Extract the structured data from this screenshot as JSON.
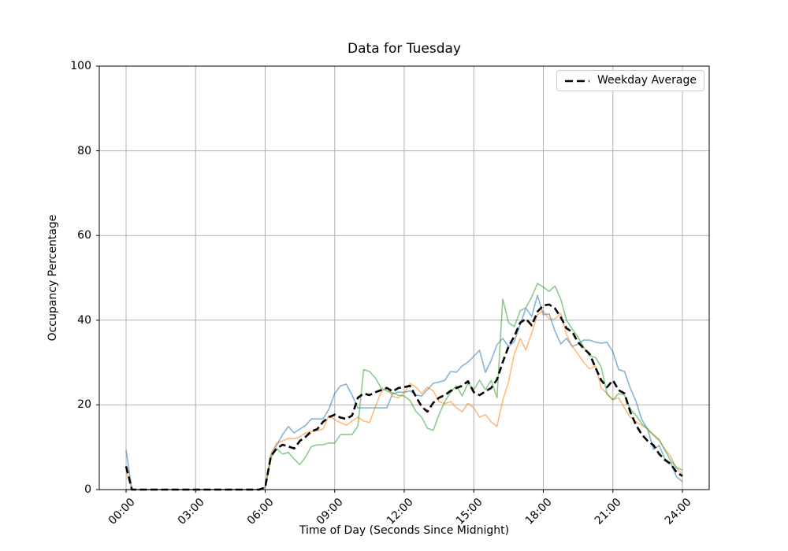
{
  "chart_data": {
    "type": "line",
    "title": "Data for Tuesday",
    "xlabel": "Time of Day (Seconds Since Midnight)",
    "ylabel": "Occupancy Percentage",
    "ylim": [
      0,
      100
    ],
    "y_ticks": [
      0,
      20,
      40,
      60,
      80,
      100
    ],
    "x_tick_hours": [
      0,
      3,
      6,
      9,
      12,
      15,
      18,
      21,
      24
    ],
    "x_tick_labels": [
      "00:00",
      "03:00",
      "06:00",
      "09:00",
      "12:00",
      "15:00",
      "18:00",
      "21:00",
      "24:00"
    ],
    "x_start_hour": 0,
    "x_step_hours": 0.25,
    "grid": true,
    "grid_color": "#b0b0b0",
    "axis_color": "#000000",
    "background": "#ffffff",
    "legend": {
      "label": "Weekday Average",
      "position": "upper right"
    },
    "series": [
      {
        "id": "tuesday-observation-1",
        "color": "#1f77b4",
        "opacity": 0.55,
        "width": 1.6,
        "dash": null,
        "values": [
          9.3,
          0,
          0,
          0,
          0,
          0,
          0,
          0,
          0,
          0,
          0,
          0,
          0,
          0,
          0,
          0,
          0,
          0,
          0,
          0,
          0,
          0,
          0,
          0,
          0.5,
          8.0,
          10.5,
          13.0,
          14.9,
          13.4,
          14.3,
          15.2,
          16.7,
          16.7,
          16.7,
          19.0,
          22.7,
          24.5,
          24.9,
          22.3,
          19.3,
          19.3,
          19.3,
          19.3,
          19.3,
          19.3,
          22.7,
          23.0,
          23.0,
          23.3,
          22.3,
          22.1,
          23.6,
          25.1,
          25.4,
          25.8,
          27.9,
          27.7,
          29.2,
          30.1,
          31.5,
          32.9,
          27.7,
          30.5,
          34.2,
          35.7,
          33.8,
          35.0,
          39.0,
          42.8,
          40.9,
          45.9,
          41.3,
          41.5,
          37.5,
          34.4,
          35.7,
          33.8,
          34.4,
          35.3,
          35.3,
          34.8,
          34.6,
          34.8,
          32.5,
          28.3,
          27.9,
          24.0,
          20.8,
          16.5,
          14.3,
          9.5,
          10.4,
          7.2,
          6.3,
          3.0,
          1.9
        ]
      },
      {
        "id": "tuesday-observation-2",
        "color": "#ff7f0e",
        "opacity": 0.55,
        "width": 1.6,
        "dash": null,
        "values": [
          4.6,
          0,
          0,
          0,
          0,
          0,
          0,
          0,
          0,
          0,
          0,
          0,
          0,
          0,
          0,
          0,
          0,
          0,
          0,
          0,
          0,
          0,
          0,
          0,
          0.5,
          8.5,
          11.0,
          11.5,
          12.1,
          12.0,
          12.5,
          13.4,
          13.7,
          13.9,
          14.3,
          17.5,
          16.5,
          15.8,
          15.2,
          16.2,
          17.1,
          16.2,
          15.8,
          19.5,
          23.0,
          24.2,
          22.0,
          21.7,
          22.8,
          25.1,
          24.2,
          22.7,
          24.2,
          23.3,
          20.8,
          20.3,
          20.8,
          19.3,
          18.4,
          20.4,
          19.3,
          17.1,
          17.7,
          16.0,
          14.9,
          21.0,
          25.5,
          32.0,
          35.7,
          33.0,
          37.0,
          41.3,
          42.2,
          40.3,
          40.3,
          41.6,
          36.6,
          33.8,
          32.0,
          30.0,
          28.5,
          29.2,
          24.0,
          22.7,
          21.2,
          21.7,
          19.3,
          17.1,
          16.0,
          15.2,
          14.3,
          12.8,
          11.5,
          9.5,
          7.8,
          5.0,
          3.7
        ]
      },
      {
        "id": "tuesday-observation-3",
        "color": "#2ca02c",
        "opacity": 0.55,
        "width": 1.6,
        "dash": null,
        "values": [
          0,
          0,
          0,
          0,
          0,
          0,
          0,
          0,
          0,
          0,
          0,
          0,
          0,
          0,
          0,
          0,
          0,
          0,
          0,
          0,
          0,
          0,
          0,
          0,
          0.5,
          7.5,
          9.7,
          8.4,
          8.8,
          7.2,
          5.9,
          7.8,
          10.2,
          10.6,
          10.6,
          11.0,
          11.0,
          13.0,
          13.0,
          13.0,
          15.0,
          28.3,
          27.9,
          26.4,
          24.0,
          23.3,
          22.8,
          22.3,
          22.1,
          21.0,
          18.5,
          17.1,
          14.5,
          14.0,
          17.7,
          20.8,
          23.0,
          24.5,
          22.1,
          25.1,
          23.6,
          25.8,
          23.6,
          25.8,
          21.7,
          45.0,
          39.4,
          38.5,
          42.2,
          43.0,
          45.5,
          48.7,
          47.8,
          46.8,
          48.1,
          45.0,
          40.0,
          37.9,
          36.0,
          33.5,
          31.6,
          31.2,
          29.0,
          22.5,
          21.2,
          22.7,
          22.3,
          19.0,
          17.5,
          15.6,
          14.2,
          13.0,
          11.8,
          9.3,
          6.8,
          5.2,
          4.6
        ]
      },
      {
        "id": "weekday-average",
        "legend_label": "Weekday Average",
        "color": "#000000",
        "opacity": 1,
        "width": 2.6,
        "dash": "9 4.5",
        "values": [
          5.5,
          0,
          0,
          0,
          0,
          0,
          0,
          0,
          0,
          0,
          0,
          0,
          0,
          0,
          0,
          0,
          0,
          0,
          0,
          0,
          0,
          0,
          0,
          0,
          0.5,
          8.0,
          9.7,
          10.6,
          10.2,
          9.7,
          11.5,
          12.5,
          13.8,
          14.3,
          16.0,
          17.1,
          17.7,
          17.0,
          16.7,
          17.5,
          21.7,
          22.7,
          22.3,
          23.0,
          23.5,
          24.0,
          23.2,
          24.0,
          24.2,
          24.5,
          22.0,
          19.6,
          18.4,
          20.5,
          21.7,
          22.3,
          23.3,
          24.0,
          24.5,
          25.6,
          23.0,
          22.3,
          23.2,
          24.0,
          26.0,
          30.1,
          33.8,
          36.2,
          39.4,
          40.3,
          38.8,
          42.0,
          43.5,
          43.7,
          42.8,
          40.7,
          38.1,
          37.2,
          34.8,
          33.3,
          32.0,
          28.8,
          25.8,
          24.2,
          25.8,
          23.5,
          22.7,
          18.4,
          15.2,
          13.0,
          11.5,
          10.5,
          8.4,
          7.0,
          6.0,
          4.1,
          3.2
        ]
      }
    ]
  }
}
